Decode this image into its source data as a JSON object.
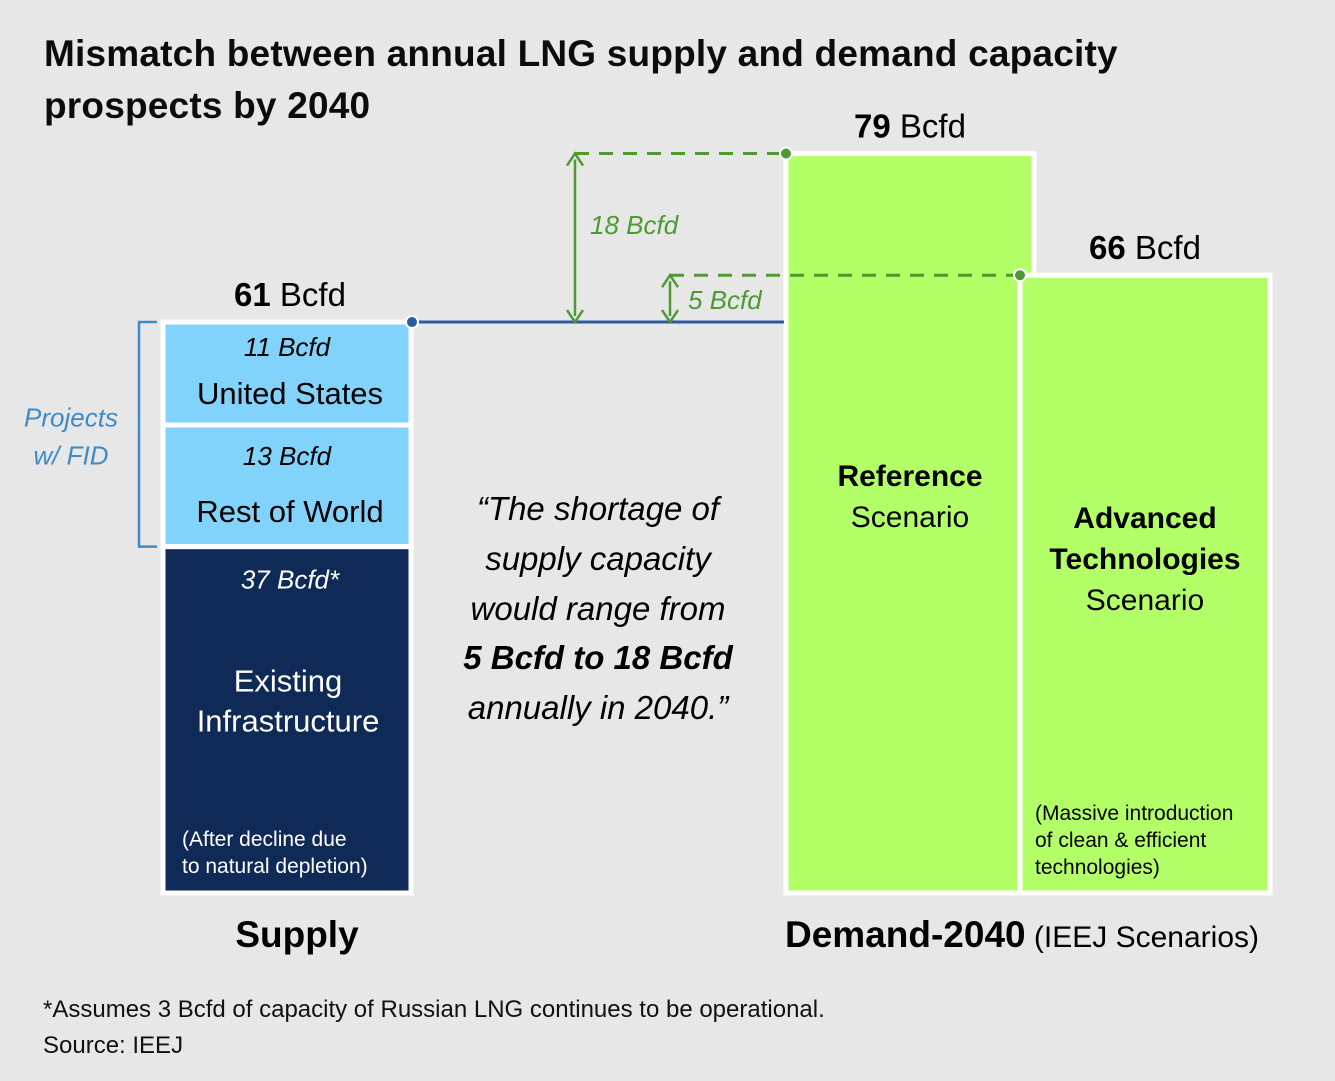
{
  "header": {
    "title_main": "Mismatch between annual LNG supply and demand capacity prospects by ",
    "title_year": "2040"
  },
  "footnotes": {
    "assumption": "*Assumes 3 Bcfd of capacity of Russian LNG continues to be operational.",
    "source": "Source: IEEJ"
  },
  "chart_data": {
    "type": "bar",
    "unit": "Bcfd",
    "supply": {
      "axis_label": "Supply",
      "total": 61,
      "total_label_value": "61",
      "total_label_unit": " Bcfd",
      "segments": [
        {
          "name": "United States",
          "value": 11,
          "value_label": "11 Bcfd",
          "color": "#82d3fb",
          "text_color": "#0c0c0c"
        },
        {
          "name": "Rest of World",
          "value": 13,
          "value_label": "13 Bcfd",
          "color": "#82d3fb",
          "text_color": "#0c0c0c"
        },
        {
          "name_lines": [
            "Existing",
            "Infrastructure"
          ],
          "value": 37,
          "value_label": "37 Bcfd*",
          "note_lines": [
            "(After decline due",
            "to natural depletion)"
          ],
          "color": "#0f2a56",
          "text_color": "#ffffff"
        }
      ],
      "bracket_label_lines": [
        "Projects",
        "w/ FID"
      ],
      "bracket_color": "#3f89c6"
    },
    "demand": {
      "axis_label_bold": "Demand-2040",
      "axis_label_regular": " (IEEJ Scenarios)",
      "scenarios": [
        {
          "name_bold": "Reference",
          "name_regular": "Scenario",
          "value": 79,
          "value_label": "79",
          "unit_label": " Bcfd",
          "color": "#b3ff68"
        },
        {
          "name_bold_lines": [
            "Advanced",
            "Technologies"
          ],
          "name_regular": "Scenario",
          "value": 66,
          "value_label": "66",
          "unit_label": " Bcfd",
          "color": "#b3ff68",
          "note_lines": [
            "(Massive introduction",
            "of clean & efficient",
            "technologies)"
          ]
        }
      ]
    },
    "gaps": [
      {
        "label": "18 Bcfd",
        "value": 18,
        "from": 61,
        "to": 79
      },
      {
        "label": "5 Bcfd",
        "value": 5,
        "from": 61,
        "to": 66
      }
    ],
    "quote": {
      "line1": "“The shortage of",
      "line2": "supply capacity",
      "line3": "would range from",
      "line4_bold": "5 Bcfd to 18 Bcfd",
      "line5": "annually in 2040.”"
    },
    "colors": {
      "supply_line": "#2d58a2",
      "gap": "#4e9a32",
      "border": "#ffffff"
    }
  }
}
